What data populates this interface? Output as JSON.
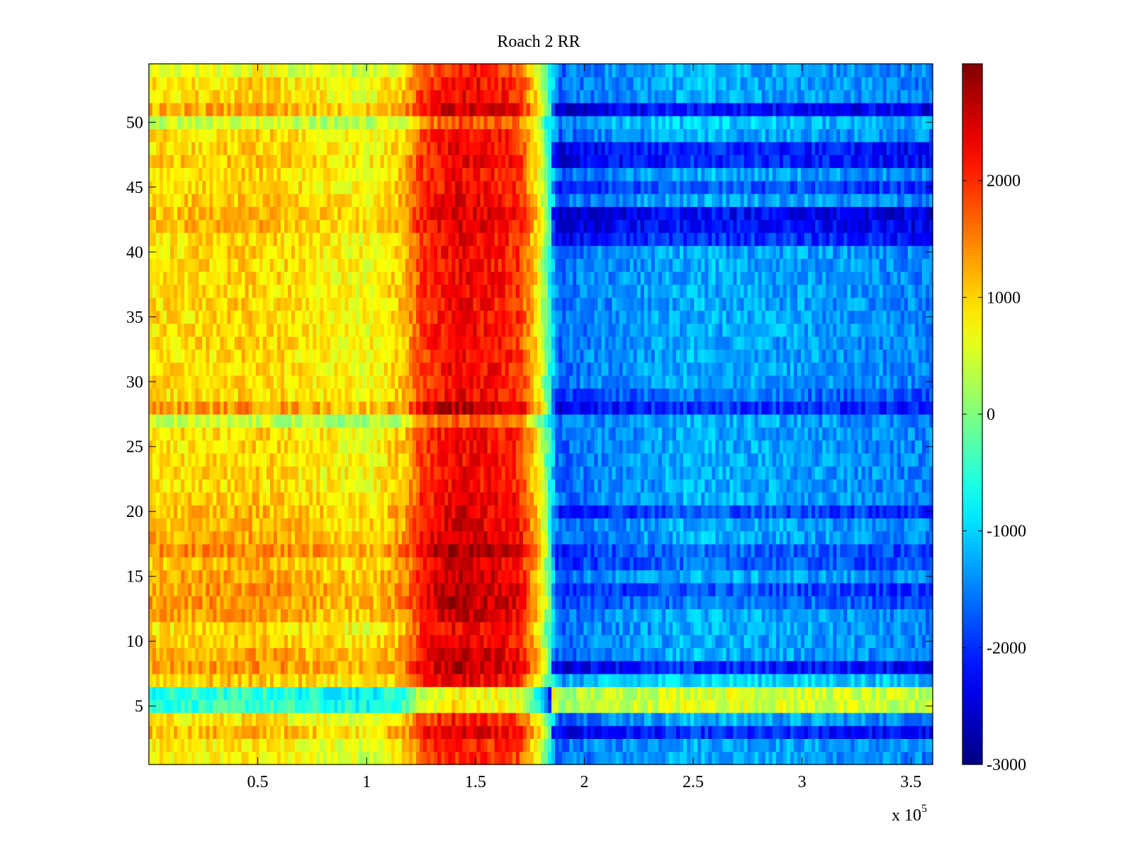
{
  "chart_data": {
    "type": "heatmap",
    "title": "Roach 2 RR",
    "xlabel": "",
    "ylabel": "",
    "x_multiplier_base": "x 10",
    "x_multiplier_exp": "5",
    "xlim": [
      0,
      360000
    ],
    "ylim": [
      0.5,
      54.5
    ],
    "x_ticks": [
      50000,
      100000,
      150000,
      200000,
      250000,
      300000,
      350000
    ],
    "x_tick_labels": [
      "0.5",
      "1",
      "1.5",
      "2",
      "2.5",
      "3",
      "3.5"
    ],
    "y_ticks": [
      5,
      10,
      15,
      20,
      25,
      30,
      35,
      40,
      45,
      50
    ],
    "y_tick_labels": [
      "5",
      "10",
      "15",
      "20",
      "25",
      "30",
      "35",
      "40",
      "45",
      "50"
    ],
    "rows": 54,
    "colormap": "jet",
    "clim": [
      -3000,
      3000
    ],
    "colorbar": {
      "ticks": [
        -3000,
        -2000,
        -1000,
        0,
        1000,
        2000
      ],
      "labels": [
        "-3000",
        "-2000",
        "-1000",
        "0",
        "1000",
        "2000"
      ]
    },
    "column_profile": {
      "x": [
        0,
        50000,
        100000,
        118000,
        125000,
        140000,
        155000,
        170000,
        180000,
        188000,
        200000,
        250000,
        300000,
        360000
      ],
      "value": [
        900,
        1000,
        700,
        1100,
        1900,
        2300,
        2200,
        2000,
        600,
        -1700,
        -1500,
        -1200,
        -1300,
        -1500
      ]
    },
    "row_offsets": {
      "rows": [
        1,
        2,
        3,
        4,
        5,
        6,
        7,
        8,
        9,
        10,
        12,
        13,
        14,
        15,
        16,
        17,
        18,
        19,
        20,
        21,
        27,
        28,
        29,
        40,
        41,
        42,
        43,
        44,
        45,
        46,
        47,
        48,
        49,
        50,
        51,
        52,
        53,
        54
      ],
      "left_delta": [
        -200,
        -150,
        200,
        -100,
        -1400,
        -1500,
        100,
        400,
        300,
        150,
        300,
        400,
        400,
        300,
        200,
        500,
        300,
        200,
        200,
        100,
        -600,
        400,
        0,
        0,
        0,
        200,
        200,
        100,
        0,
        0,
        100,
        0,
        0,
        -500,
        300,
        0,
        0,
        -300
      ],
      "right_delta": [
        0,
        0,
        -800,
        0,
        1800,
        1800,
        300,
        -800,
        0,
        0,
        0,
        -300,
        -500,
        0,
        -400,
        -400,
        0,
        0,
        -500,
        0,
        0,
        -700,
        -300,
        0,
        -700,
        -900,
        -1000,
        0,
        -500,
        0,
        -800,
        -800,
        0,
        200,
        -900,
        0,
        0,
        0
      ]
    }
  }
}
